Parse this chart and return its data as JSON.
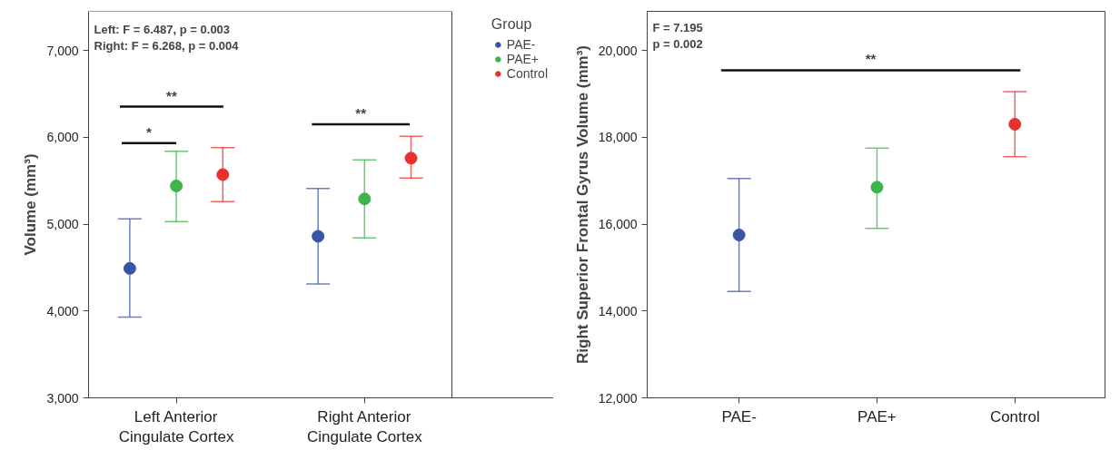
{
  "chart_data": [
    {
      "type": "scatter",
      "categories": [
        "Left Anterior Cingulate Cortex",
        "Right Anterior Cingulate Cortex"
      ],
      "ylabel": "Volume (mm³)",
      "legend_title": "Group",
      "legend": "right",
      "marker": "circle",
      "grid": false,
      "ylim": [
        3000,
        7450
      ],
      "yticks": [
        {
          "value": 3000,
          "label": "3,000"
        },
        {
          "value": 4000,
          "label": "4,000"
        },
        {
          "value": 5000,
          "label": "5,000"
        },
        {
          "value": 6000,
          "label": "6,000"
        },
        {
          "value": 7000,
          "label": "7,000"
        }
      ],
      "series": [
        {
          "name": "PAE-",
          "color": "#3a55a5",
          "values": [
            4490,
            4860
          ],
          "errors": [
            [
              3930,
              5060
            ],
            [
              4310,
              5410
            ]
          ]
        },
        {
          "name": "PAE+",
          "color": "#3cb54a",
          "values": [
            5440,
            5290
          ],
          "errors": [
            [
              5030,
              5840
            ],
            [
              4840,
              5740
            ]
          ]
        },
        {
          "name": "Control",
          "color": "#e8312f",
          "values": [
            5570,
            5760
          ],
          "errors": [
            [
              5260,
              5880
            ],
            [
              5530,
              6010
            ]
          ]
        }
      ],
      "annotations": [
        "Left: F = 6.487, p = 0.003",
        "Right: F = 6.268, p = 0.004",
        "**",
        "*",
        "**"
      ]
    },
    {
      "type": "scatter",
      "categories": [
        "PAE-",
        "PAE+",
        "Control"
      ],
      "ylabel": "Right Superior Frontal Gyrus Volume (mm³)",
      "marker": "circle",
      "grid": false,
      "legend": false,
      "ylim": [
        12000,
        20900
      ],
      "yticks": [
        {
          "value": 12000,
          "label": "12,000"
        },
        {
          "value": 14000,
          "label": "14,000"
        },
        {
          "value": 16000,
          "label": "16,000"
        },
        {
          "value": 18000,
          "label": "18,000"
        },
        {
          "value": 20000,
          "label": "20,000"
        }
      ],
      "values": [
        15750,
        16850,
        18300
      ],
      "colors": [
        "#3a55a5",
        "#3cb54a",
        "#e8312f"
      ],
      "errors": [
        [
          14450,
          17050
        ],
        [
          15900,
          17750
        ],
        [
          17550,
          19050
        ]
      ],
      "annotations": [
        "F = 7.195",
        "p = 0.002",
        "**"
      ]
    }
  ]
}
